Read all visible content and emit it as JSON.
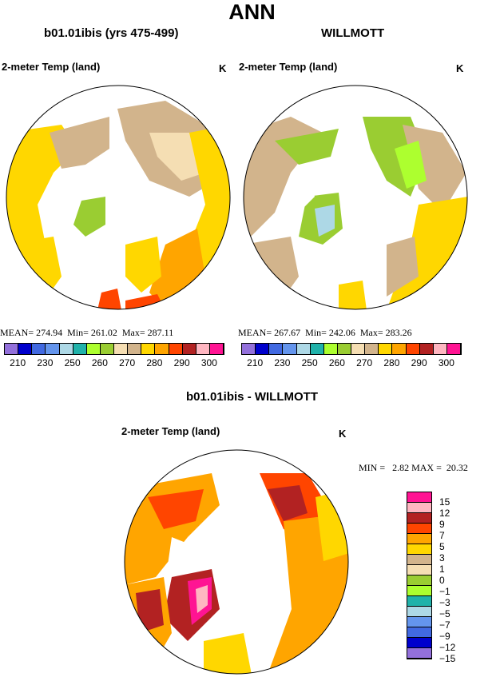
{
  "page": {
    "title": "ANN"
  },
  "panels": [
    {
      "subtitle": "b01.01ibis (yrs 475-499)",
      "variable": "2-meter Temp (land)",
      "units": "K",
      "stats": "MEAN= 274.94  Min= 261.02  Max= 287.11"
    },
    {
      "subtitle": "WILLMOTT",
      "variable": "2-meter Temp (land)",
      "units": "K",
      "stats": "MEAN= 267.67  Min= 242.06  Max= 283.26"
    },
    {
      "subtitle": "b01.01ibis - WILLMOTT",
      "variable": "2-meter Temp (land)",
      "units": "K",
      "stats": "MIN =   2.82 MAX =  20.32"
    }
  ],
  "colorbar_abs": {
    "colors": [
      "#9370db",
      "#0000cd",
      "#4169e1",
      "#6495ed",
      "#add8e6",
      "#20b2aa",
      "#adff2f",
      "#9acd32",
      "#f5deb3",
      "#d2b48c",
      "#ffd700",
      "#ffa500",
      "#ff4500",
      "#b22222",
      "#ffb6c1",
      "#ff1493"
    ],
    "labels": [
      "210",
      "230",
      "250",
      "260",
      "270",
      "280",
      "290",
      "300"
    ]
  },
  "colorbar_diff": {
    "colors": [
      "#ff1493",
      "#ffb6c1",
      "#b22222",
      "#ff4500",
      "#ffa500",
      "#ffd700",
      "#d2b48c",
      "#f5deb3",
      "#9acd32",
      "#adff2f",
      "#20b2aa",
      "#add8e6",
      "#6495ed",
      "#4169e1",
      "#0000cd",
      "#9370db"
    ],
    "labels": [
      "15",
      "12",
      "9",
      "7",
      "5",
      "3",
      "1",
      "0",
      "−1",
      "−3",
      "−5",
      "−7",
      "−9",
      "−12",
      "−15"
    ]
  },
  "icons": [
    "polar-map"
  ]
}
